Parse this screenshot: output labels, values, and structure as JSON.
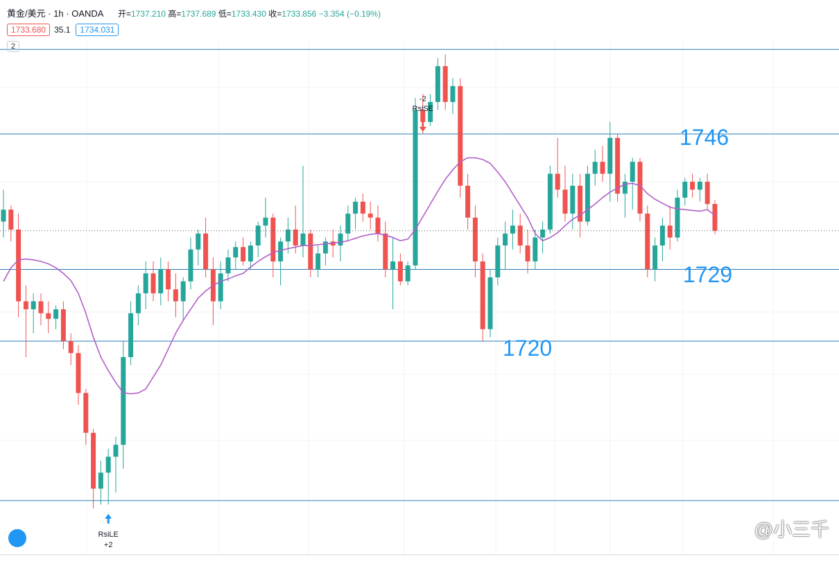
{
  "header": {
    "symbol": "黄金/美元",
    "interval": "1h",
    "broker": "OANDA",
    "open_label": "开=",
    "open": "1737.210",
    "high_label": "高=",
    "high": "1737.689",
    "low_label": "低=",
    "low": "1733.430",
    "close_label": "收=",
    "close": "1733.856",
    "change": "−3.354",
    "change_pct": "(−0.19%)",
    "bid": "1733.680",
    "spread": "35.1",
    "ask": "1734.031",
    "badge": "2"
  },
  "chart_data": {
    "type": "candlestick",
    "up_color": "#26a69a",
    "down_color": "#ef5350",
    "ylim": [
      1693.2,
      1762.8
    ],
    "candles": {
      "open": [
        1735,
        1736.5,
        1734,
        1725,
        1724,
        1725,
        1723.5,
        1722.8,
        1724,
        1720,
        1718.5,
        1713.5,
        1708.5,
        1701.5,
        1703.5,
        1705.5,
        1707,
        1718,
        1723.5,
        1726,
        1728.5,
        1726,
        1729,
        1726.5,
        1725,
        1727.5,
        1731.5,
        1733.5,
        1729,
        1725,
        1728.5,
        1730.5,
        1731.8,
        1730,
        1732,
        1734.5,
        1735.5,
        1730,
        1732.5,
        1734,
        1732,
        1733.5,
        1729,
        1731,
        1732.5,
        1732,
        1733.5,
        1736,
        1737.5,
        1736,
        1735.5,
        1733.5,
        1729,
        1730,
        1727.5,
        1729.5,
        1749,
        1747.5,
        1750,
        1754.5,
        1750,
        1752,
        1739.5,
        1735.5,
        1730,
        1721.5,
        1728,
        1732,
        1733.5,
        1734.5,
        1732,
        1730,
        1733,
        1734,
        1741,
        1739,
        1736,
        1739.5,
        1735,
        1741,
        1742.5,
        1741,
        1745.5,
        1738.5,
        1740,
        1742.5,
        1736,
        1729,
        1732,
        1734.5,
        1733,
        1738,
        1740,
        1739,
        1740,
        1737.21
      ],
      "high": [
        1739,
        1737,
        1736,
        1727,
        1726,
        1726,
        1725,
        1724.5,
        1725,
        1721,
        1719.5,
        1714,
        1709,
        1705,
        1706.5,
        1708,
        1720,
        1725,
        1727,
        1730,
        1730,
        1730.5,
        1730,
        1728.5,
        1728,
        1733,
        1734,
        1735.5,
        1730.5,
        1730,
        1731.5,
        1732.5,
        1733,
        1732.5,
        1735,
        1738,
        1736,
        1733,
        1735.5,
        1737,
        1742,
        1734,
        1732,
        1733,
        1734,
        1734.5,
        1737,
        1738,
        1738.5,
        1737.5,
        1737,
        1735,
        1733,
        1731,
        1730,
        1750.5,
        1751,
        1751,
        1755.5,
        1756,
        1753,
        1753,
        1741,
        1737,
        1731,
        1729,
        1733,
        1735,
        1736.5,
        1736,
        1734,
        1734,
        1735,
        1742,
        1745.5,
        1742,
        1741,
        1741,
        1742,
        1744,
        1744.5,
        1747.5,
        1746,
        1741,
        1743,
        1743,
        1737,
        1733,
        1735.5,
        1737,
        1739,
        1740.5,
        1741,
        1740.5,
        1741,
        1737.689
      ],
      "low": [
        1733,
        1732.5,
        1723,
        1718,
        1721,
        1722,
        1721,
        1721.5,
        1719,
        1717,
        1712,
        1707,
        1699,
        1699.5,
        1699.5,
        1701,
        1704,
        1717,
        1722,
        1724,
        1725,
        1724.5,
        1725,
        1723,
        1722.5,
        1726.5,
        1729.5,
        1728,
        1722,
        1724,
        1727.5,
        1729,
        1729.5,
        1729,
        1730.5,
        1733,
        1728,
        1727,
        1731,
        1731,
        1730.5,
        1728,
        1728,
        1729.5,
        1730.5,
        1730,
        1732.5,
        1734,
        1735,
        1734,
        1732.5,
        1728,
        1724,
        1727,
        1727,
        1729,
        1746,
        1747,
        1749,
        1749,
        1748.5,
        1738,
        1734,
        1728,
        1720,
        1720.5,
        1727,
        1729,
        1731.5,
        1731,
        1728.5,
        1729,
        1731,
        1733.5,
        1738,
        1735,
        1734,
        1733,
        1734.5,
        1739.5,
        1740,
        1737.5,
        1737.5,
        1735.5,
        1736.5,
        1735,
        1728,
        1727.5,
        1730,
        1731.5,
        1732.5,
        1737,
        1738,
        1737.5,
        1736.5,
        1733.43
      ],
      "close": [
        1736.5,
        1734,
        1725,
        1724,
        1725,
        1723.5,
        1722.8,
        1724,
        1720,
        1718.5,
        1713.5,
        1708.5,
        1701.5,
        1703.5,
        1705.5,
        1707,
        1718,
        1723.5,
        1726,
        1728.5,
        1726,
        1729,
        1726.5,
        1725,
        1727.5,
        1731.5,
        1733.5,
        1729,
        1725,
        1728.5,
        1730.5,
        1731.8,
        1730,
        1732,
        1734.5,
        1735.5,
        1730,
        1732.5,
        1734,
        1732,
        1733.5,
        1729,
        1731,
        1732.5,
        1732,
        1733.5,
        1736,
        1737.5,
        1736,
        1735.5,
        1733.5,
        1729,
        1730,
        1727.5,
        1729.5,
        1749,
        1747.5,
        1750,
        1754.5,
        1750,
        1752,
        1739.5,
        1735.5,
        1730,
        1721.5,
        1728,
        1732,
        1733.5,
        1734.5,
        1732,
        1730,
        1733,
        1734,
        1741,
        1739,
        1736,
        1739.5,
        1735,
        1741,
        1742.5,
        1741,
        1745.5,
        1738.5,
        1740,
        1742.5,
        1736,
        1729,
        1732,
        1734.5,
        1733,
        1738,
        1740,
        1739,
        1740,
        1737.2,
        1733.856
      ]
    },
    "ma": {
      "color": "#b25ec8",
      "values": [
        1727.5,
        1729.2,
        1730.2,
        1730.3,
        1730.2,
        1730,
        1729.7,
        1729.2,
        1728.5,
        1727.6,
        1726,
        1723.5,
        1720.5,
        1718,
        1716.3,
        1714.8,
        1713.5,
        1713.4,
        1713.5,
        1714,
        1715.5,
        1717,
        1719,
        1721,
        1722.6,
        1724,
        1725.4,
        1726.3,
        1727,
        1727.5,
        1727.8,
        1728.2,
        1728.5,
        1729.3,
        1730,
        1730.6,
        1731.1,
        1731.4,
        1731.6,
        1731.8,
        1732,
        1732,
        1732.1,
        1732.2,
        1732.3,
        1732.4,
        1732.6,
        1732.9,
        1733.2,
        1733.4,
        1733.5,
        1733.3,
        1733,
        1732.6,
        1732.8,
        1734,
        1735.6,
        1737.2,
        1738.8,
        1740.3,
        1741.5,
        1742.5,
        1743,
        1743,
        1742.8,
        1742.3,
        1741.2,
        1740,
        1738.5,
        1737,
        1735.5,
        1733.5,
        1732.6,
        1733,
        1733.6,
        1734.5,
        1735.3,
        1735.8,
        1736.5,
        1737.2,
        1738,
        1738.7,
        1739.2,
        1739.7,
        1739.8,
        1739.5,
        1738.5,
        1737.8,
        1737.3,
        1736.8,
        1736.6,
        1736.5,
        1736.4,
        1736.3,
        1736.5,
        1735.8
      ]
    },
    "levels": [
      1746,
      1729,
      1720
    ],
    "lines": [
      1756.6,
      1700
    ],
    "level_color": "#2a7ab8",
    "label_color": "#2196f3",
    "signals": [
      {
        "label": "RsiLE",
        "qty": "+2"
      },
      {
        "label": "RsiSE",
        "qty": "-2"
      }
    ]
  },
  "watermark": "@小三千"
}
